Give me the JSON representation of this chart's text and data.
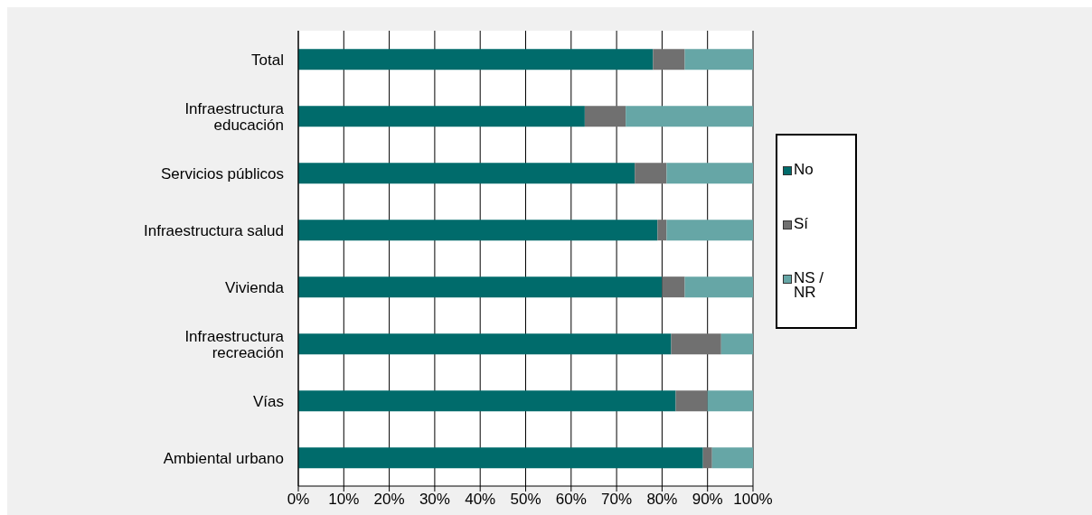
{
  "chart_data": {
    "type": "bar",
    "orientation": "horizontal",
    "stacked": true,
    "categories": [
      "Total",
      "Infraestructura educación",
      "Servicios públicos",
      "Infraestructura salud",
      "Vivienda",
      "Infraestructura recreación",
      "Vías",
      "Ambiental urbano"
    ],
    "series": [
      {
        "name": "No",
        "color": "#006b6b",
        "values": [
          78,
          63,
          74,
          79,
          80,
          82,
          83,
          89
        ]
      },
      {
        "name": "Sí",
        "color": "#707070",
        "values": [
          7,
          9,
          7,
          2,
          5,
          11,
          7,
          2
        ]
      },
      {
        "name": "NS / NR",
        "color": "#66a6a6",
        "values": [
          15,
          28,
          19,
          19,
          15,
          7,
          10,
          9
        ]
      }
    ],
    "xlim": [
      0,
      100
    ],
    "xticks": [
      {
        "value": 0,
        "label": "0%"
      },
      {
        "value": 10,
        "label": "10%"
      },
      {
        "value": 20,
        "label": "20%"
      },
      {
        "value": 30,
        "label": "30%"
      },
      {
        "value": 40,
        "label": "40%"
      },
      {
        "value": 50,
        "label": "50%"
      },
      {
        "value": 60,
        "label": "60%"
      },
      {
        "value": 70,
        "label": "70%"
      },
      {
        "value": 80,
        "label": "80%"
      },
      {
        "value": 90,
        "label": "90%"
      },
      {
        "value": 100,
        "label": "100%"
      }
    ],
    "grid": "x",
    "legend": "right"
  }
}
